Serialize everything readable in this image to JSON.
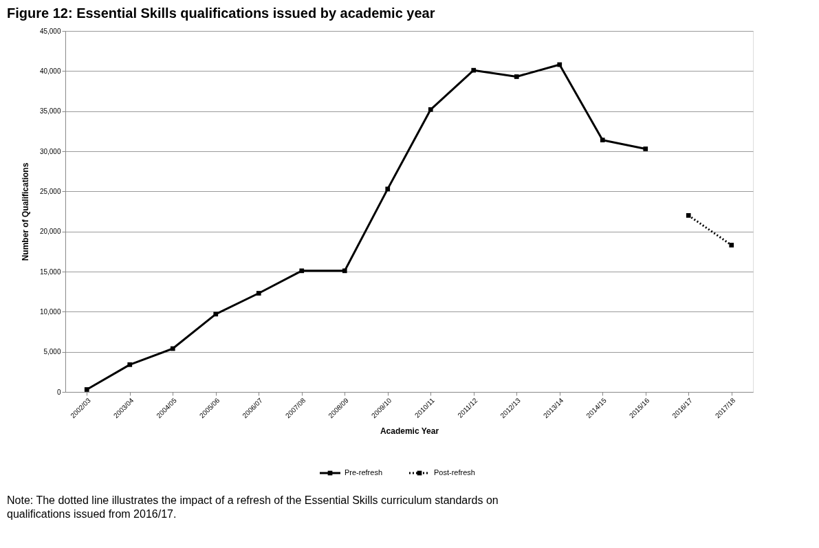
{
  "chart_data": {
    "type": "line",
    "title": "Figure 12: Essential Skills qualifications issued by academic year",
    "xlabel": "Academic Year",
    "ylabel": "Number of Qualifications",
    "categories": [
      "2002/03",
      "2003/04",
      "2004/05",
      "2005/06",
      "2006/07",
      "2007/08",
      "2008/09",
      "2009/10",
      "2010/11",
      "2011/12",
      "2012/13",
      "2013/14",
      "2014/15",
      "2015/16",
      "2016/17",
      "2017/18"
    ],
    "series": [
      {
        "name": "Pre-refresh",
        "color": "#000000",
        "line_style": "solid",
        "values": [
          300,
          3400,
          5400,
          9700,
          12300,
          15100,
          15100,
          25300,
          35200,
          40100,
          39300,
          40800,
          31400,
          30300,
          null,
          null
        ]
      },
      {
        "name": "Post-refresh",
        "color": "#000000",
        "line_style": "dotted",
        "values": [
          null,
          null,
          null,
          null,
          null,
          null,
          null,
          null,
          null,
          null,
          null,
          null,
          null,
          null,
          22000,
          18300
        ]
      }
    ],
    "ylim": [
      0,
      45000
    ],
    "yticks": [
      {
        "value": 0,
        "label": "0"
      },
      {
        "value": 5000,
        "label": "5,000"
      },
      {
        "value": 10000,
        "label": "10,000"
      },
      {
        "value": 15000,
        "label": "15,000"
      },
      {
        "value": 20000,
        "label": "20,000"
      },
      {
        "value": 25000,
        "label": "25,000"
      },
      {
        "value": 30000,
        "label": "30,000"
      },
      {
        "value": 35000,
        "label": "35,000"
      },
      {
        "value": 40000,
        "label": "40,000"
      },
      {
        "value": 45000,
        "label": "45,000"
      }
    ],
    "grid": "y",
    "legend": "bottom",
    "marker": "square",
    "annotations": [
      "Note: The dotted line illustrates the impact of a refresh of the Essential Skills curriculum standards on qualifications issued from 2016/17."
    ]
  }
}
